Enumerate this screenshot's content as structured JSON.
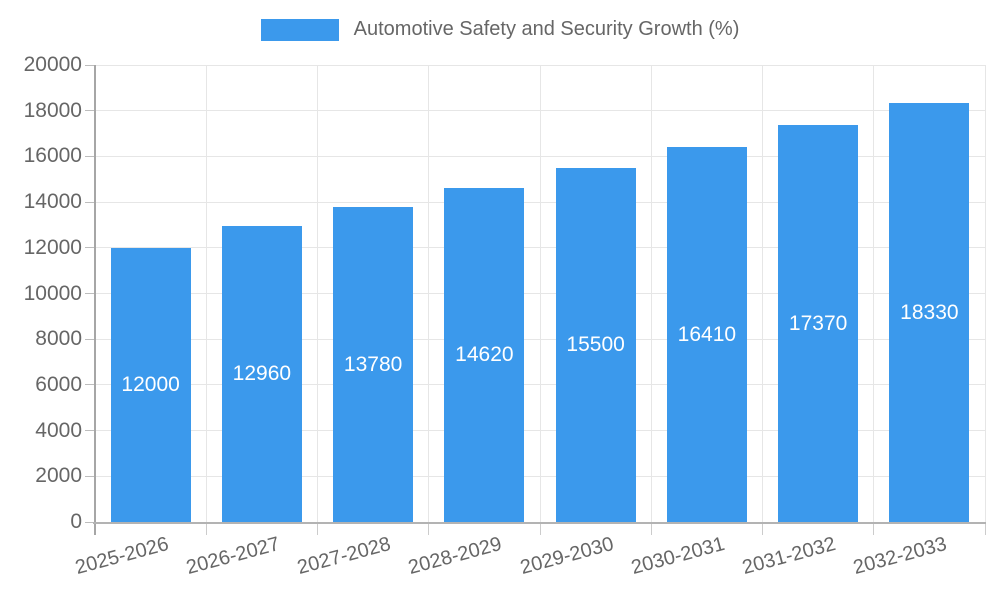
{
  "legend": {
    "label": "Automotive Safety and Security Growth (%)"
  },
  "chart_data": {
    "type": "bar",
    "title": "Automotive Safety and Security Growth (%)",
    "categories": [
      "2025-2026",
      "2026-2027",
      "2027-2028",
      "2028-2029",
      "2029-2030",
      "2030-2031",
      "2031-2032",
      "2032-2033"
    ],
    "values": [
      12000,
      12960,
      13780,
      14620,
      15500,
      16410,
      17370,
      18330
    ],
    "xlabel": "",
    "ylabel": "",
    "ylim": [
      0,
      20000
    ],
    "ytick_step": 2000,
    "ytick_labels": [
      "0",
      "2000",
      "4000",
      "6000",
      "8000",
      "10000",
      "12000",
      "14000",
      "16000",
      "18000",
      "20000"
    ],
    "grid": true,
    "legend_position": "top-center",
    "x_tick_rotation_deg": -15,
    "bar_labels_inside": true,
    "colors": {
      "bar": "#3b99ec",
      "bar_label": "#ffffff",
      "axis_text": "#666666",
      "gridline": "#e6e6e6",
      "axis_line": "#a6a6a6",
      "background": "#ffffff"
    }
  }
}
